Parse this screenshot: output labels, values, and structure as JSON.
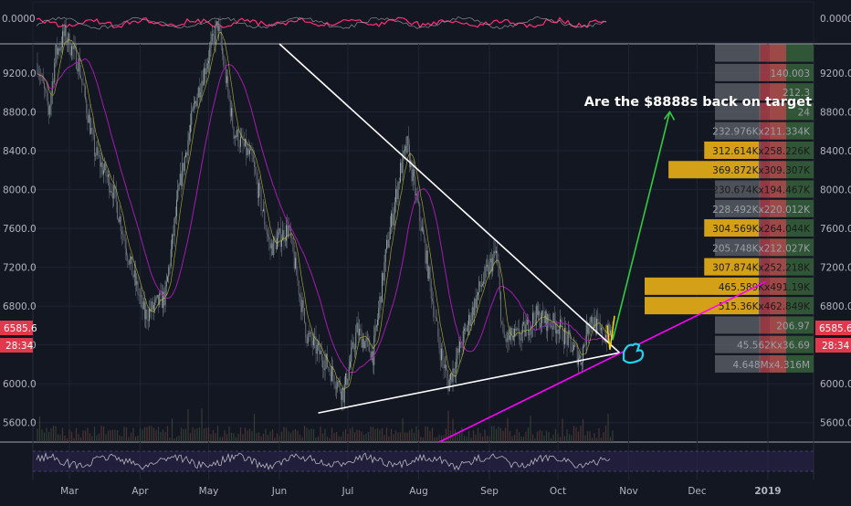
{
  "title": "",
  "annotation": {
    "text": "Are the $8888s back on target"
  },
  "price_badge": {
    "price": "6585.6",
    "countdown": "28:34"
  },
  "top_indicator": {
    "axis_label_left": "0.0000",
    "axis_label_right": "0.0000",
    "zero": 0
  },
  "chart_data": {
    "type": "candlestick",
    "ylim": [
      5400,
      9500
    ],
    "x_axis": {
      "ticks": [
        {
          "label": "Mar",
          "date": "2018-03-01"
        },
        {
          "label": "Apr",
          "date": "2018-04-01"
        },
        {
          "label": "May",
          "date": "2018-05-01"
        },
        {
          "label": "Jun",
          "date": "2018-06-01"
        },
        {
          "label": "Jul",
          "date": "2018-07-01"
        },
        {
          "label": "Aug",
          "date": "2018-08-01"
        },
        {
          "label": "Sep",
          "date": "2018-09-01"
        },
        {
          "label": "Oct",
          "date": "2018-10-01"
        },
        {
          "label": "Nov",
          "date": "2018-11-01"
        },
        {
          "label": "Dec",
          "date": "2018-12-01"
        },
        {
          "label": "2019",
          "date": "2019-01-01"
        }
      ]
    },
    "y_axis": {
      "ticks": [
        5600,
        6000,
        6400,
        6800,
        7200,
        7600,
        8000,
        8400,
        8800,
        9200
      ]
    },
    "y_tick_labels": [
      "5600.0",
      "6000.0",
      "6400.0",
      "6800.0",
      "7200.0",
      "7600.0",
      "8000.0",
      "8400.0",
      "8800.0",
      "9200.0"
    ],
    "price_path": [
      {
        "date": "2018-02-15",
        "price": 9300
      },
      {
        "date": "2018-02-20",
        "price": 8800
      },
      {
        "date": "2018-02-23",
        "price": 9400
      },
      {
        "date": "2018-02-27",
        "price": 9600
      },
      {
        "date": "2018-03-05",
        "price": 9300
      },
      {
        "date": "2018-03-12",
        "price": 8400
      },
      {
        "date": "2018-03-20",
        "price": 8000
      },
      {
        "date": "2018-03-28",
        "price": 7200
      },
      {
        "date": "2018-04-03",
        "price": 6700
      },
      {
        "date": "2018-04-12",
        "price": 6900
      },
      {
        "date": "2018-04-18",
        "price": 8000
      },
      {
        "date": "2018-04-25",
        "price": 8900
      },
      {
        "date": "2018-05-05",
        "price": 9700
      },
      {
        "date": "2018-05-12",
        "price": 8600
      },
      {
        "date": "2018-05-20",
        "price": 8300
      },
      {
        "date": "2018-05-28",
        "price": 7400
      },
      {
        "date": "2018-06-05",
        "price": 7600
      },
      {
        "date": "2018-06-13",
        "price": 6500
      },
      {
        "date": "2018-06-22",
        "price": 6200
      },
      {
        "date": "2018-06-29",
        "price": 5900
      },
      {
        "date": "2018-07-05",
        "price": 6550
      },
      {
        "date": "2018-07-12",
        "price": 6300
      },
      {
        "date": "2018-07-18",
        "price": 7400
      },
      {
        "date": "2018-07-24",
        "price": 8200
      },
      {
        "date": "2018-07-27",
        "price": 8450
      },
      {
        "date": "2018-08-03",
        "price": 7500
      },
      {
        "date": "2018-08-10",
        "price": 6400
      },
      {
        "date": "2018-08-14",
        "price": 6000
      },
      {
        "date": "2018-08-21",
        "price": 6500
      },
      {
        "date": "2018-08-28",
        "price": 7000
      },
      {
        "date": "2018-09-04",
        "price": 7350
      },
      {
        "date": "2018-09-07",
        "price": 6450
      },
      {
        "date": "2018-09-15",
        "price": 6500
      },
      {
        "date": "2018-09-21",
        "price": 6700
      },
      {
        "date": "2018-10-01",
        "price": 6600
      },
      {
        "date": "2018-10-11",
        "price": 6250
      },
      {
        "date": "2018-10-15",
        "price": 6700
      },
      {
        "date": "2018-10-20",
        "price": 6500
      },
      {
        "date": "2018-10-25",
        "price": 6520
      }
    ],
    "trendlines": [
      {
        "name": "",
        "color": "#ffffff",
        "from": {
          "date": "2018-06-01",
          "price": 9500
        },
        "to": {
          "date": "2018-10-28",
          "price": 6320
        }
      },
      {
        "name": "",
        "color": "#ffffff",
        "from": {
          "date": "2018-06-18",
          "price": 5700
        },
        "to": {
          "date": "2018-10-28",
          "price": 6320
        }
      },
      {
        "name": "",
        "color": "#ff00ff",
        "from": {
          "date": "2018-08-10",
          "price": 5400
        },
        "to": {
          "date": "2018-12-31",
          "price": 7050
        }
      },
      {
        "name": "",
        "color": "#2ecc40",
        "from": {
          "date": "2018-10-25",
          "price": 6450
        },
        "to": {
          "date": "2018-11-19",
          "price": 8800
        }
      }
    ],
    "volume_profile": {
      "rows": [
        {
          "price": 9400,
          "label": "",
          "fill": 0.0
        },
        {
          "price": 9200,
          "label": "140.003",
          "fill": 0.0
        },
        {
          "price": 9000,
          "label": "212.3",
          "fill": 0.0
        },
        {
          "price": 8800,
          "label": "24",
          "fill": 0.0
        },
        {
          "price": 8600,
          "label": "232.976Kx211.334K",
          "fill": 0.0
        },
        {
          "price": 8400,
          "label": "312.614Kx258.226K",
          "fill": 0.55
        },
        {
          "price": 8200,
          "label": "369.872Kx309.307K",
          "fill": 0.82
        },
        {
          "price": 8000,
          "label": "230.674Kx194.467K",
          "fill": 0.12
        },
        {
          "price": 7800,
          "label": "228.492Kx220.012K",
          "fill": 0.0
        },
        {
          "price": 7600,
          "label": "304.569Kx264.044K",
          "fill": 0.55
        },
        {
          "price": 7400,
          "label": "205.748Kx212.027K",
          "fill": 0.0
        },
        {
          "price": 7200,
          "label": "307.874Kx252.218K",
          "fill": 0.55
        },
        {
          "price": 7000,
          "label": "465.589Kx491.19K",
          "fill": 1.0
        },
        {
          "price": 6800,
          "label": "515.36Kx462.849K",
          "fill": 1.0
        },
        {
          "price": 6600,
          "label": "206.97",
          "fill": 0.0
        },
        {
          "price": 6400,
          "label": "45.562Kx36.69",
          "fill": 0.0
        },
        {
          "price": 6200,
          "label": "4.648Mx4.316M",
          "fill": 0.0
        }
      ]
    }
  },
  "colors": {
    "background": "#131722",
    "grid": "#1f2433",
    "axis_text": "#b2b5be",
    "accent_red": "#e0394e",
    "profile_gold": "#d4a017",
    "profile_gray": "#7a7a7a",
    "profile_red": "#c0464f",
    "profile_green": "#3c6b3f",
    "cyan_icon": "#22d3ee"
  }
}
